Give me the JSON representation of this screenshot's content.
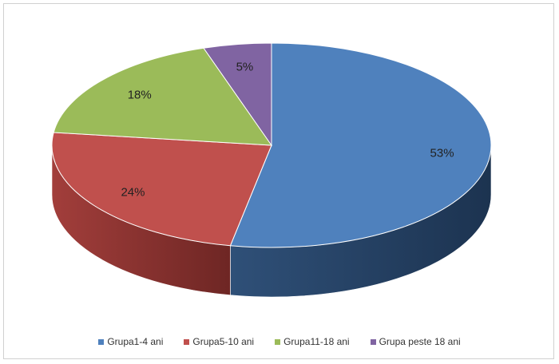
{
  "chart_data": {
    "type": "pie",
    "three_d": true,
    "title": "",
    "categories": [
      "Grupa1-4 ani",
      "Grupa5-10 ani",
      "Grupa11-18 ani",
      "Grupa peste 18 ani"
    ],
    "values": [
      53,
      24,
      18,
      5
    ],
    "value_labels": [
      "53%",
      "24%",
      "18%",
      "5%"
    ],
    "colors": [
      "#4f81bd",
      "#c0504d",
      "#9bbb59",
      "#8064a2"
    ],
    "legend_position": "bottom"
  }
}
